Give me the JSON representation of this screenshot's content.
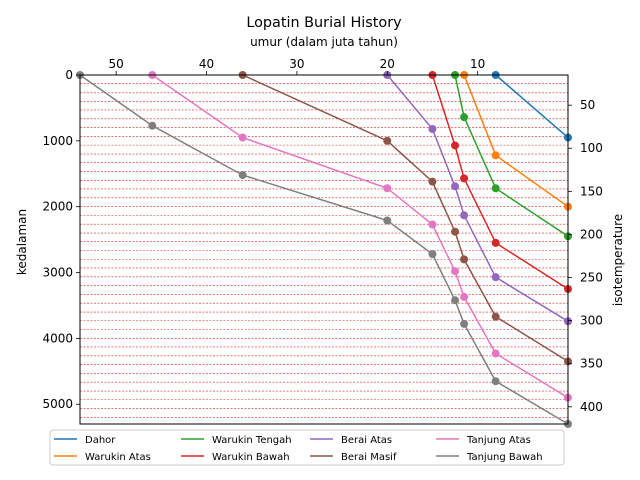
{
  "chart_data": {
    "type": "line",
    "title": "Lopatin Burial History",
    "xlabel_top": "umur (dalam juta tahun)",
    "ylabel_left": "kedalaman",
    "ylabel_right": "isotemperature",
    "xlim": [
      54,
      0
    ],
    "ylim": [
      5300,
      0
    ],
    "right_ylim": [
      420,
      15
    ],
    "x_ticks": [
      50,
      40,
      30,
      20,
      10
    ],
    "y_ticks": [
      0,
      1000,
      2000,
      3000,
      4000,
      5000
    ],
    "right_ticks": [
      50,
      100,
      150,
      200,
      250,
      300,
      350,
      400
    ],
    "isotherm_depth_lines": [
      0,
      130,
      270,
      400,
      530,
      665,
      800,
      935,
      1065,
      1200,
      1330,
      1465,
      1600,
      1730,
      1865,
      2000,
      2130,
      2265,
      2400,
      2530,
      2665,
      2800,
      2930,
      3065,
      3200,
      3330,
      3465,
      3600,
      3730,
      3865,
      4000,
      4130,
      4265,
      4400,
      4530,
      4665,
      4800,
      4930,
      5065,
      5200
    ],
    "isotherm_line_color": "#d62728",
    "legend_position": "bottom",
    "series": [
      {
        "name": "Dahor",
        "color": "#1f77b4",
        "x": [
          8,
          0
        ],
        "y": [
          0,
          950
        ]
      },
      {
        "name": "Warukin Atas",
        "color": "#ff7f0e",
        "x": [
          11.5,
          8,
          0
        ],
        "y": [
          0,
          1220,
          2000
        ]
      },
      {
        "name": "Warukin Tengah",
        "color": "#2ca02c",
        "x": [
          12.5,
          11.5,
          8,
          0
        ],
        "y": [
          0,
          640,
          1720,
          2450
        ]
      },
      {
        "name": "Warukin Bawah",
        "color": "#d62728",
        "x": [
          15,
          12.5,
          11.5,
          8,
          0
        ],
        "y": [
          0,
          1070,
          1570,
          2550,
          3250
        ]
      },
      {
        "name": "Berai Atas",
        "color": "#9467bd",
        "x": [
          20,
          15,
          12.5,
          11.5,
          8,
          0
        ],
        "y": [
          0,
          820,
          1690,
          2130,
          3070,
          3740
        ]
      },
      {
        "name": "Berai Masif",
        "color": "#8c564b",
        "x": [
          36,
          20,
          15,
          12.5,
          11.5,
          8,
          0
        ],
        "y": [
          0,
          1000,
          1620,
          2380,
          2800,
          3670,
          4350
        ]
      },
      {
        "name": "Tanjung Atas",
        "color": "#e377c2",
        "x": [
          46,
          36,
          20,
          15,
          12.5,
          11.5,
          8,
          0
        ],
        "y": [
          0,
          950,
          1720,
          2270,
          2980,
          3370,
          4230,
          4900
        ]
      },
      {
        "name": "Tanjung Bawah",
        "color": "#7f7f7f",
        "x": [
          54,
          46,
          36,
          20,
          15,
          12.5,
          11.5,
          8,
          0
        ],
        "y": [
          0,
          770,
          1520,
          2210,
          2720,
          3420,
          3780,
          4650,
          5300
        ]
      }
    ]
  }
}
